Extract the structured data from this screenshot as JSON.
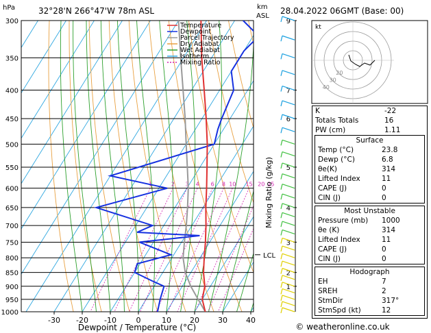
{
  "header": {
    "unit_hpa": "hPa",
    "location": "32°28'N  266°47'W  78m  ASL",
    "km_label": "km",
    "asl_label": "ASL",
    "datetime": "28.04.2022  06GMT  (Base: 00)"
  },
  "chart_data": {
    "type": "skew-t",
    "xlabel": "Dewpoint / Temperature (°C)",
    "ylabel_right": "Mixing Ratio (g/kg)",
    "x_ticks": [
      -30,
      -20,
      -10,
      0,
      10,
      20,
      30,
      40
    ],
    "pressure_levels": [
      300,
      350,
      400,
      450,
      500,
      550,
      600,
      650,
      700,
      750,
      800,
      850,
      900,
      950,
      1000
    ],
    "km_ticks": [
      {
        "p": 300,
        "label": "9"
      },
      {
        "p": 400,
        "label": "7"
      },
      {
        "p": 450,
        "label": "6"
      },
      {
        "p": 550,
        "label": "5"
      },
      {
        "p": 650,
        "label": "4"
      },
      {
        "p": 750,
        "label": "3"
      },
      {
        "p": 850,
        "label": "2"
      },
      {
        "p": 900,
        "label": "1"
      }
    ],
    "lcl": {
      "p": 790,
      "label": "LCL"
    },
    "mixing_ratio_labels": [
      "1",
      "2",
      "3",
      "4",
      "6",
      "8",
      "10",
      "15",
      "20",
      "25"
    ],
    "legend": [
      "Temperature",
      "Dewpoint",
      "Parcel Trajectory",
      "Dry Adiabat",
      "Wet Adiabat",
      "Isotherm",
      "Mixing Ratio"
    ],
    "colors": {
      "temperature": "#e03030",
      "dewpoint": "#1530e0",
      "parcel": "#999999",
      "dry_adiabat": "#e8a040",
      "wet_adiabat": "#2ca02c",
      "isotherm": "#2fa7e0",
      "mixing_ratio": "#d020b0",
      "wind_barb_high": "#1aa0e0",
      "wind_barb_mid": "#40c040",
      "wind_barb_low": "#e0d000"
    },
    "temperature": [
      {
        "p": 1000,
        "t": 23.8
      },
      {
        "p": 950,
        "t": 20.0
      },
      {
        "p": 900,
        "t": 18.0
      },
      {
        "p": 850,
        "t": 14.5
      },
      {
        "p": 800,
        "t": 11.5
      },
      {
        "p": 750,
        "t": 8.5
      },
      {
        "p": 700,
        "t": 5.0
      },
      {
        "p": 650,
        "t": 1.0
      },
      {
        "p": 600,
        "t": -3.0
      },
      {
        "p": 550,
        "t": -7.5
      },
      {
        "p": 500,
        "t": -12.5
      },
      {
        "p": 450,
        "t": -18.5
      },
      {
        "p": 400,
        "t": -25.5
      },
      {
        "p": 350,
        "t": -33.5
      },
      {
        "p": 300,
        "t": -42.0
      }
    ],
    "dewpoint": [
      {
        "p": 1000,
        "t": 6.8
      },
      {
        "p": 950,
        "t": 5.0
      },
      {
        "p": 900,
        "t": 3.5
      },
      {
        "p": 880,
        "t": -2.0
      },
      {
        "p": 850,
        "t": -10.0
      },
      {
        "p": 820,
        "t": -11.0
      },
      {
        "p": 790,
        "t": -1.0
      },
      {
        "p": 750,
        "t": -15.0
      },
      {
        "p": 730,
        "t": 5.0
      },
      {
        "p": 720,
        "t": -18.0
      },
      {
        "p": 700,
        "t": -14.0
      },
      {
        "p": 650,
        "t": -38.0
      },
      {
        "p": 600,
        "t": -17.0
      },
      {
        "p": 570,
        "t": -40.0
      },
      {
        "p": 500,
        "t": -10.0
      },
      {
        "p": 470,
        "t": -12.0
      },
      {
        "p": 450,
        "t": -13.0
      },
      {
        "p": 400,
        "t": -15.0
      },
      {
        "p": 370,
        "t": -20.0
      },
      {
        "p": 340,
        "t": -20.0
      },
      {
        "p": 320,
        "t": -18.0
      },
      {
        "p": 300,
        "t": -27.0
      }
    ],
    "parcel": [
      {
        "p": 1000,
        "t": 23.8
      },
      {
        "p": 950,
        "t": 18.5
      },
      {
        "p": 900,
        "t": 13.0
      },
      {
        "p": 850,
        "t": 8.0
      },
      {
        "p": 800,
        "t": 4.0
      },
      {
        "p": 750,
        "t": 1.0
      },
      {
        "p": 700,
        "t": -2.0
      },
      {
        "p": 650,
        "t": -5.5
      },
      {
        "p": 600,
        "t": -9.5
      },
      {
        "p": 550,
        "t": -14.5
      },
      {
        "p": 500,
        "t": -20.0
      },
      {
        "p": 450,
        "t": -26.0
      },
      {
        "p": 400,
        "t": -33.0
      },
      {
        "p": 350,
        "t": -41.0
      },
      {
        "p": 300,
        "t": -50.0
      }
    ],
    "hodograph": {
      "label": "kt",
      "ring_labels": [
        "10",
        "20",
        "30",
        "40"
      ]
    }
  },
  "indices": {
    "top": [
      {
        "label": "K",
        "value": "-22"
      },
      {
        "label": "Totals Totals",
        "value": "16"
      },
      {
        "label": "PW (cm)",
        "value": "1.11"
      }
    ],
    "surface": {
      "title": "Surface",
      "rows": [
        {
          "label": "Temp (°C)",
          "value": "23.8"
        },
        {
          "label": "Dewp (°C)",
          "value": "6.8"
        },
        {
          "label": "θe(K)",
          "value": "314"
        },
        {
          "label": "Lifted Index",
          "value": "11"
        },
        {
          "label": "CAPE (J)",
          "value": "0"
        },
        {
          "label": "CIN (J)",
          "value": "0"
        }
      ]
    },
    "most_unstable": {
      "title": "Most Unstable",
      "rows": [
        {
          "label": "Pressure (mb)",
          "value": "1000"
        },
        {
          "label": "θe (K)",
          "value": "314"
        },
        {
          "label": "Lifted Index",
          "value": "11"
        },
        {
          "label": "CAPE (J)",
          "value": "0"
        },
        {
          "label": "CIN (J)",
          "value": "0"
        }
      ]
    },
    "hodograph": {
      "title": "Hodograph",
      "rows": [
        {
          "label": "EH",
          "value": "7"
        },
        {
          "label": "SREH",
          "value": "2"
        },
        {
          "label": "StmDir",
          "value": "317°"
        },
        {
          "label": "StmSpd (kt)",
          "value": "12"
        }
      ]
    }
  },
  "footer": {
    "credit": "© weatheronline.co.uk"
  }
}
